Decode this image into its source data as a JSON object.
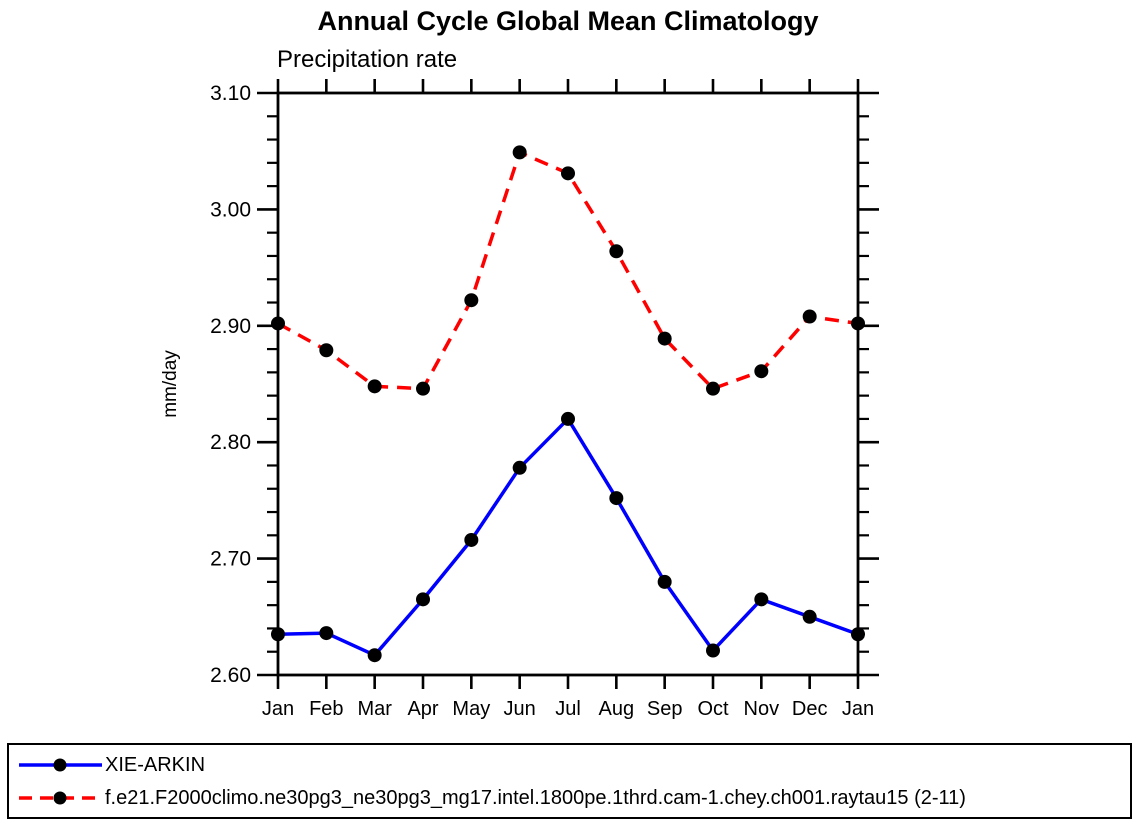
{
  "header": {
    "title": "Annual Cycle Global Mean Climatology",
    "subtitle": "Precipitation rate"
  },
  "chart_data": {
    "type": "line",
    "title": "Annual Cycle Global Mean Climatology",
    "subtitle": "Precipitation rate",
    "ylabel": "mm/day",
    "xlabel": "",
    "categories": [
      "Jan",
      "Feb",
      "Mar",
      "Apr",
      "May",
      "Jun",
      "Jul",
      "Aug",
      "Sep",
      "Oct",
      "Nov",
      "Dec",
      "Jan"
    ],
    "series": [
      {
        "name": "XIE-ARKIN",
        "color": "#0000ff",
        "line_style": "solid",
        "marker": "filled-circle",
        "marker_color": "#000000",
        "values": [
          2.635,
          2.636,
          2.617,
          2.665,
          2.716,
          2.778,
          2.82,
          2.752,
          2.68,
          2.621,
          2.665,
          2.65,
          2.635
        ]
      },
      {
        "name": "f.e21.F2000climo.ne30pg3_ne30pg3_mg17.intel.1800pe.1thrd.cam-1.chey.ch001.raytau15 (2-11)",
        "color": "#ff0000",
        "line_style": "dashed",
        "marker": "filled-circle",
        "marker_color": "#000000",
        "values": [
          2.902,
          2.879,
          2.848,
          2.846,
          2.922,
          3.049,
          3.031,
          2.964,
          2.889,
          2.846,
          2.861,
          2.908,
          2.902
        ]
      }
    ],
    "ylim": [
      2.6,
      3.1
    ],
    "ytick_major": 0.1,
    "ytick_minor": 0.02,
    "ytick_labels": [
      "2.60",
      "2.70",
      "2.80",
      "2.90",
      "3.00",
      "3.10"
    ],
    "grid": false,
    "legend_position": "bottom",
    "axis_color": "#000000",
    "background_color": "#ffffff"
  }
}
